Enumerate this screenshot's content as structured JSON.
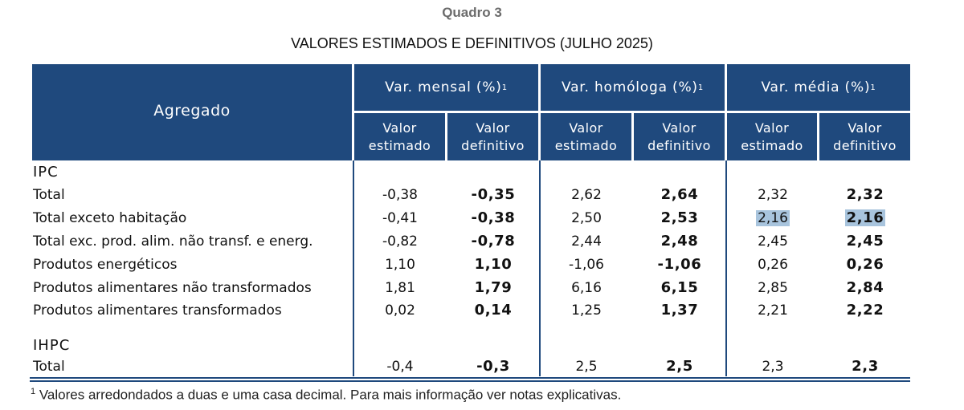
{
  "table_label": "Quadro 3",
  "title": "VALORES ESTIMADOS E DEFINITIVOS (JULHO 2025)",
  "header": {
    "agregado": "Agregado",
    "groups": [
      {
        "label": "Var. mensal (%)",
        "sup": "1"
      },
      {
        "label": "Var. homóloga (%)",
        "sup": "1"
      },
      {
        "label": "Var. média (%)",
        "sup": "1"
      }
    ],
    "sub_est": "Valor estimado",
    "sub_def": "Valor definitivo",
    "sub_line1": "Valor",
    "sub_est_line2": "estimado",
    "sub_def_line2": "definitivo"
  },
  "sections": [
    {
      "name": "IPC",
      "rows": [
        {
          "label": "Total",
          "values": [
            "-0,38",
            "-0,35",
            "2,62",
            "2,64",
            "2,32",
            "2,32"
          ]
        },
        {
          "label": "Total exceto habitação",
          "values": [
            "-0,41",
            "-0,38",
            "2,50",
            "2,53",
            "2,16",
            "2,16"
          ]
        },
        {
          "label": "Total exc. prod. alim. não transf. e energ.",
          "values": [
            "-0,82",
            "-0,78",
            "2,44",
            "2,48",
            "2,45",
            "2,45"
          ]
        },
        {
          "label": "Produtos energéticos",
          "values": [
            "1,10",
            "1,10",
            "-1,06",
            "-1,06",
            "0,26",
            "0,26"
          ]
        },
        {
          "label": "Produtos alimentares não transformados",
          "values": [
            "1,81",
            "1,79",
            "6,16",
            "6,15",
            "2,85",
            "2,84"
          ]
        },
        {
          "label": "Produtos alimentares transformados",
          "values": [
            "0,02",
            "0,14",
            "1,25",
            "1,37",
            "2,21",
            "2,22"
          ]
        }
      ]
    },
    {
      "name": "IHPC",
      "rows": [
        {
          "label": "Total",
          "values": [
            "-0,4",
            "-0,3",
            "2,5",
            "2,5",
            "2,3",
            "2,3"
          ]
        }
      ]
    }
  ],
  "footnote_mark": "1",
  "footnote": "Valores arredondados a duas e uma casa decimal. Para mais informação ver notas explicativas.",
  "colors": {
    "header_bg": "#1f497d",
    "highlight": "#a8c4dd"
  }
}
